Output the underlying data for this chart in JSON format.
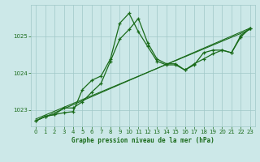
{
  "title": "Graphe pression niveau de la mer (hPa)",
  "bg_color": "#cce8e8",
  "grid_color": "#a0c8c8",
  "line_color": "#1a6b1a",
  "xlim": [
    -0.5,
    23.5
  ],
  "ylim": [
    1022.55,
    1025.85
  ],
  "yticks": [
    1023,
    1024,
    1025
  ],
  "xticks": [
    0,
    1,
    2,
    3,
    4,
    5,
    6,
    7,
    8,
    9,
    10,
    11,
    12,
    13,
    14,
    15,
    16,
    17,
    18,
    19,
    20,
    21,
    22,
    23
  ],
  "series1": [
    1022.7,
    1022.82,
    1022.87,
    1022.92,
    1022.95,
    1023.55,
    1023.8,
    1023.92,
    1024.38,
    1025.35,
    1025.62,
    1025.12,
    1024.72,
    1024.32,
    1024.22,
    1024.22,
    1024.08,
    1024.22,
    1024.55,
    1024.62,
    1024.62,
    1024.55,
    1025.02,
    1025.22
  ],
  "series2": [
    1022.7,
    1022.82,
    1022.87,
    1023.05,
    1023.05,
    1023.22,
    1023.48,
    1023.72,
    1024.32,
    1024.92,
    1025.18,
    1025.48,
    1024.82,
    1024.38,
    1024.25,
    1024.25,
    1024.08,
    1024.25,
    1024.38,
    1024.52,
    1024.62,
    1024.55,
    1024.98,
    1025.22
  ],
  "line3_y": [
    1022.7,
    1025.22
  ],
  "line4_y": [
    1022.75,
    1025.18
  ]
}
